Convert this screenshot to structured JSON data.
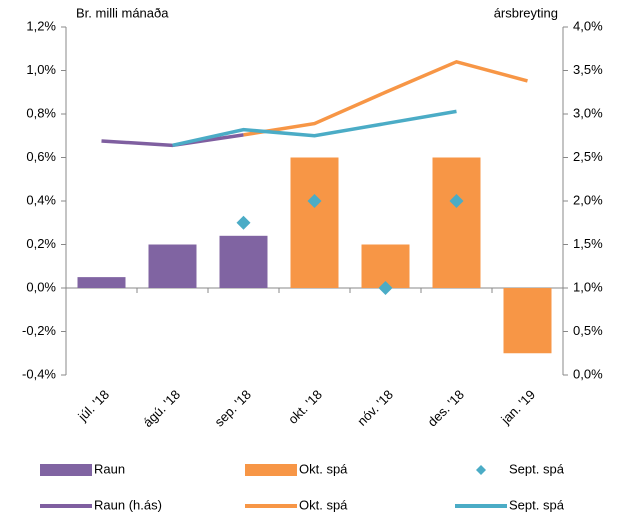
{
  "chart_data": {
    "type": "bar",
    "left_label": "Br. milli mánaða",
    "right_label": "ársbreyting",
    "categories": [
      "júl. '18",
      "ágú. '18",
      "sep. '18",
      "okt. '18",
      "nóv. '18",
      "des. '18",
      "jan. '19"
    ],
    "series": [
      {
        "name": "Raun",
        "type": "bar",
        "color": "#8064a2",
        "values": [
          0.05,
          0.2,
          0.24,
          null,
          null,
          null,
          null
        ]
      },
      {
        "name": "Okt. spá",
        "type": "bar",
        "color": "#f79646",
        "values": [
          null,
          null,
          null,
          0.6,
          0.2,
          0.6,
          -0.3
        ]
      },
      {
        "name": "Sept. spá",
        "type": "scatter",
        "color": "#4bacc6",
        "values": [
          null,
          null,
          0.3,
          0.4,
          0.0,
          0.4,
          null
        ]
      },
      {
        "name": "Raun (h.ás)",
        "type": "line",
        "axis": "y2",
        "color": "#7f5fa0",
        "values": [
          2.69,
          2.64,
          2.76,
          null,
          null,
          null,
          null
        ]
      },
      {
        "name": "Okt. spá",
        "type": "line",
        "axis": "y2",
        "color": "#f79646",
        "values": [
          null,
          null,
          2.76,
          2.89,
          3.25,
          3.6,
          3.38
        ]
      },
      {
        "name": "Sept. spá",
        "type": "line",
        "axis": "y2",
        "color": "#4bacc6",
        "values": [
          null,
          2.64,
          2.82,
          2.75,
          2.89,
          3.03,
          null
        ]
      }
    ],
    "ylim": [
      -0.4,
      1.2
    ],
    "yticks": [
      {
        "value": -0.4,
        "label": "-0,4%"
      },
      {
        "value": -0.2,
        "label": "-0,2%"
      },
      {
        "value": 0.0,
        "label": "0,0%"
      },
      {
        "value": 0.2,
        "label": "0,2%"
      },
      {
        "value": 0.4,
        "label": "0,4%"
      },
      {
        "value": 0.6,
        "label": "0,6%"
      },
      {
        "value": 0.8,
        "label": "0,8%"
      },
      {
        "value": 1.0,
        "label": "1,0%"
      },
      {
        "value": 1.2,
        "label": "1,2%"
      }
    ],
    "y2lim": [
      0.0,
      4.0
    ],
    "y2ticks": [
      {
        "value": 0.0,
        "label": "0,0%"
      },
      {
        "value": 0.5,
        "label": "0,5%"
      },
      {
        "value": 1.0,
        "label": "1,0%"
      },
      {
        "value": 1.5,
        "label": "1,5%"
      },
      {
        "value": 2.0,
        "label": "2,0%"
      },
      {
        "value": 2.5,
        "label": "2,5%"
      },
      {
        "value": 3.0,
        "label": "3,0%"
      },
      {
        "value": 3.5,
        "label": "3,5%"
      },
      {
        "value": 4.0,
        "label": "4,0%"
      }
    ],
    "grid": false
  }
}
